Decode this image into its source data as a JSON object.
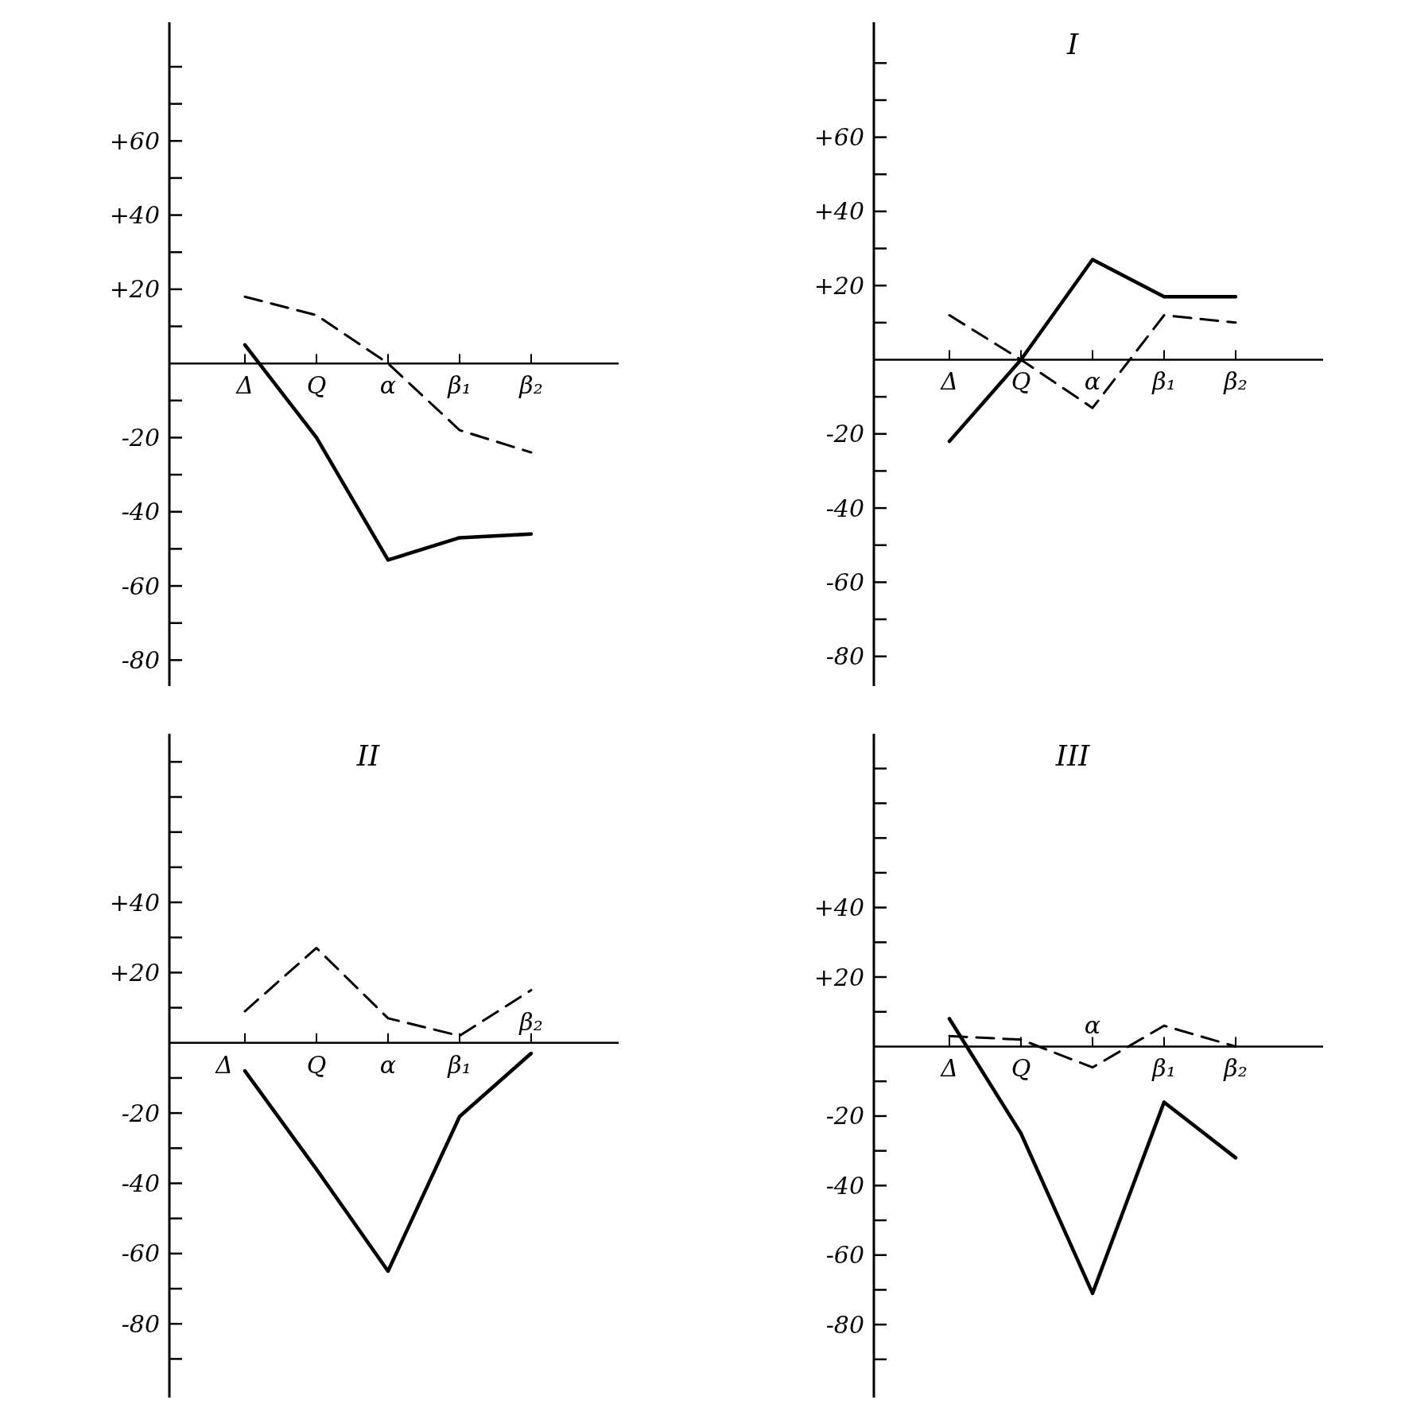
{
  "chart_data": [
    {
      "type": "line",
      "categories": [
        "Δ",
        "Q",
        "α",
        "β₁",
        "β₂"
      ],
      "ylim": [
        -87,
        92
      ],
      "yticks": [
        {
          "value": 80,
          "label": null
        },
        {
          "value": 70,
          "label": null
        },
        {
          "value": 60,
          "label": "+60"
        },
        {
          "value": 50,
          "label": null
        },
        {
          "value": 40,
          "label": "+40"
        },
        {
          "value": 30,
          "label": null
        },
        {
          "value": 20,
          "label": "+20"
        },
        {
          "value": 10,
          "label": null
        },
        {
          "value": -10,
          "label": null
        },
        -20,
        {
          "value": -30,
          "label": null
        },
        -40,
        {
          "value": -50,
          "label": null
        },
        -60,
        {
          "value": -70,
          "label": null
        },
        -80
      ],
      "series": [
        {
          "color": "#000000",
          "line_style": "solid",
          "values": [
            5,
            -20,
            -53,
            -47,
            -46
          ]
        },
        {
          "color": "#000000",
          "line_style": "dashed",
          "values": [
            18,
            13,
            0,
            -18,
            -24
          ]
        }
      ]
    },
    {
      "type": "line",
      "title": "I",
      "categories": [
        "Δ",
        "Q",
        "α",
        "β₁",
        "β₂"
      ],
      "ylim": [
        -88,
        91
      ],
      "yticks": [
        {
          "value": 80,
          "label": null
        },
        {
          "value": 70,
          "label": null
        },
        {
          "value": 60,
          "label": "+60"
        },
        {
          "value": 50,
          "label": null
        },
        {
          "value": 40,
          "label": "+40"
        },
        {
          "value": 30,
          "label": null
        },
        {
          "value": 20,
          "label": "+20"
        },
        {
          "value": 10,
          "label": null
        },
        {
          "value": -10,
          "label": null
        },
        -20,
        {
          "value": -30,
          "label": null
        },
        -40,
        {
          "value": -50,
          "label": null
        },
        -60,
        {
          "value": -70,
          "label": null
        },
        -80
      ],
      "series": [
        {
          "color": "#000000",
          "line_style": "solid",
          "values": [
            -22,
            0,
            27,
            17,
            17
          ]
        },
        {
          "color": "#000000",
          "line_style": "dashed",
          "values": [
            12,
            0,
            -13,
            12,
            10
          ]
        }
      ]
    },
    {
      "type": "line",
      "title": "II",
      "categories": [
        "Δ",
        "Q",
        "α",
        "β₁",
        "β₂"
      ],
      "ylim": [
        -101,
        88
      ],
      "yticks": [
        {
          "value": 80,
          "label": null
        },
        {
          "value": 70,
          "label": null
        },
        {
          "value": 60,
          "label": null
        },
        {
          "value": 50,
          "label": null
        },
        {
          "value": 40,
          "label": "+40"
        },
        {
          "value": 30,
          "label": null
        },
        {
          "value": 20,
          "label": "+20"
        },
        {
          "value": 10,
          "label": null
        },
        {
          "value": -10,
          "label": null
        },
        -20,
        {
          "value": -30,
          "label": null
        },
        -40,
        {
          "value": -50,
          "label": null
        },
        -60,
        {
          "value": -70,
          "label": null
        },
        -80,
        {
          "value": -90,
          "label": null
        }
      ],
      "series": [
        {
          "color": "#000000",
          "line_style": "solid",
          "values": [
            -8,
            -36,
            -65,
            -21,
            -3
          ]
        },
        {
          "color": "#000000",
          "line_style": "dashed",
          "values": [
            9,
            27,
            7,
            2,
            15
          ]
        }
      ]
    },
    {
      "type": "line",
      "title": "III",
      "categories": [
        "Δ",
        "Q",
        "α",
        "β₁",
        "β₂"
      ],
      "ylim": [
        -101,
        90
      ],
      "yticks": [
        {
          "value": 80,
          "label": null
        },
        {
          "value": 70,
          "label": null
        },
        {
          "value": 60,
          "label": null
        },
        {
          "value": 50,
          "label": null
        },
        {
          "value": 40,
          "label": "+40"
        },
        {
          "value": 30,
          "label": null
        },
        {
          "value": 20,
          "label": "+20"
        },
        {
          "value": 10,
          "label": null
        },
        {
          "value": -10,
          "label": null
        },
        -20,
        {
          "value": -30,
          "label": null
        },
        -40,
        {
          "value": -50,
          "label": null
        },
        -60,
        {
          "value": -70,
          "label": null
        },
        -80,
        {
          "value": -90,
          "label": null
        }
      ],
      "series": [
        {
          "color": "#000000",
          "line_style": "solid",
          "values": [
            8,
            -25,
            -71,
            -16,
            -32
          ]
        },
        {
          "color": "#000000",
          "line_style": "dashed",
          "values": [
            3,
            2,
            -6,
            6,
            0
          ]
        }
      ]
    }
  ]
}
